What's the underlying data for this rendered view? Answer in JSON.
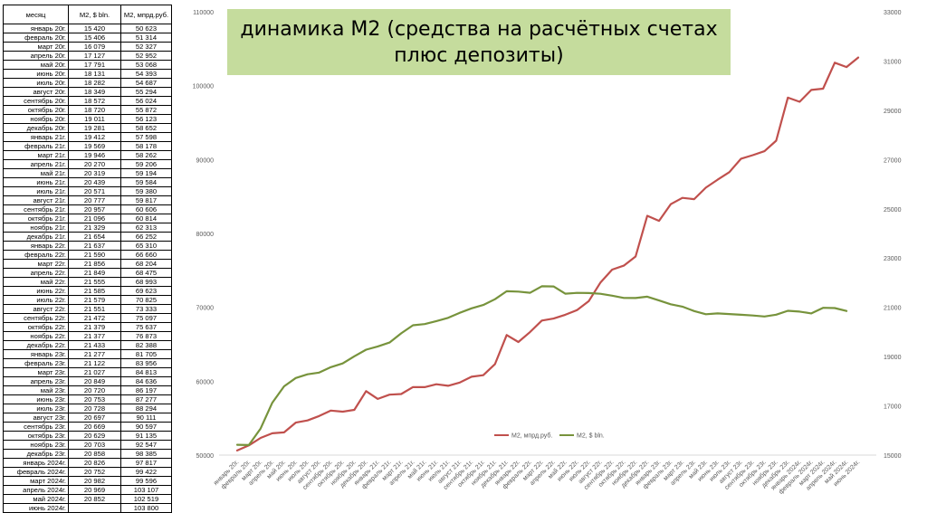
{
  "table": {
    "headers": [
      "месяц",
      "M2, $ bln.",
      "M2, мпрд.руб."
    ],
    "rows": [
      [
        "январь 20г.",
        "15 420",
        "50 623"
      ],
      [
        "февраль 20г.",
        "15 406",
        "51 314"
      ],
      [
        "март 20г.",
        "16 079",
        "52 327"
      ],
      [
        "апрель 20г.",
        "17 127",
        "52 952"
      ],
      [
        "май 20г.",
        "17 791",
        "53 068"
      ],
      [
        "июнь 20г.",
        "18 131",
        "54 393"
      ],
      [
        "июль 20г.",
        "18 282",
        "54 687"
      ],
      [
        "август 20г.",
        "18 349",
        "55 294"
      ],
      [
        "сентябрь 20г.",
        "18 572",
        "56 024"
      ],
      [
        "октябрь 20г.",
        "18 720",
        "55 872"
      ],
      [
        "ноябрь 20г.",
        "19 011",
        "56 123"
      ],
      [
        "декабрь 20г.",
        "19 281",
        "58 652"
      ],
      [
        "январь 21г.",
        "19 412",
        "57 598"
      ],
      [
        "февраль 21г.",
        "19 569",
        "58 178"
      ],
      [
        "март 21г.",
        "19 946",
        "58 262"
      ],
      [
        "апрель 21г.",
        "20 270",
        "59 206"
      ],
      [
        "май 21г.",
        "20 319",
        "59 194"
      ],
      [
        "июнь 21г.",
        "20 439",
        "59 584"
      ],
      [
        "июль 21г.",
        "20 571",
        "59 380"
      ],
      [
        "август 21г.",
        "20 777",
        "59 817"
      ],
      [
        "сентябрь 21г.",
        "20 957",
        "60 606"
      ],
      [
        "октябрь 21г.",
        "21 096",
        "60 814"
      ],
      [
        "ноябрь 21г.",
        "21 329",
        "62 313"
      ],
      [
        "декабрь 21г.",
        "21 654",
        "66 252"
      ],
      [
        "январь 22г.",
        "21 637",
        "65 310"
      ],
      [
        "февраль 22г.",
        "21 590",
        "66 660"
      ],
      [
        "март 22г.",
        "21 856",
        "68 204"
      ],
      [
        "апрель 22г.",
        "21 849",
        "68 475"
      ],
      [
        "май 22г.",
        "21 555",
        "68 993"
      ],
      [
        "июнь 22г.",
        "21 585",
        "69 623"
      ],
      [
        "июль 22г.",
        "21 579",
        "70 825"
      ],
      [
        "август 22г.",
        "21 551",
        "73 333"
      ],
      [
        "сентябрь 22г.",
        "21 472",
        "75 097"
      ],
      [
        "октябрь 22г.",
        "21 379",
        "75 637"
      ],
      [
        "ноябрь 22г.",
        "21 377",
        "76 873"
      ],
      [
        "декабрь 22г.",
        "21 433",
        "82 388"
      ],
      [
        "январь 23г.",
        "21 277",
        "81 705"
      ],
      [
        "февраль 23г.",
        "21 122",
        "83 956"
      ],
      [
        "март 23г.",
        "21 027",
        "84 813"
      ],
      [
        "апрель 23г.",
        "20 849",
        "84 636"
      ],
      [
        "май 23г.",
        "20 720",
        "86 197"
      ],
      [
        "июнь 23г.",
        "20 753",
        "87 277"
      ],
      [
        "июль 23г.",
        "20 728",
        "88 294"
      ],
      [
        "август 23г.",
        "20 697",
        "90 111"
      ],
      [
        "сентябрь 23г.",
        "20 669",
        "90 597"
      ],
      [
        "октябрь 23г.",
        "20 629",
        "91 135"
      ],
      [
        "ноябрь 23г.",
        "20 703",
        "92 547"
      ],
      [
        "декабрь 23г.",
        "20 858",
        "98 385"
      ],
      [
        "январь 2024г.",
        "20 826",
        "97 817"
      ],
      [
        "февраль 2024г.",
        "20 752",
        "99 422"
      ],
      [
        "март 2024г.",
        "20 982",
        "99 596"
      ],
      [
        "апрель 2024г.",
        "20 969",
        "103 107"
      ],
      [
        "май 2024г.",
        "20 852",
        "102 519"
      ],
      [
        "июнь 2024г.",
        "",
        "103 800"
      ]
    ]
  },
  "chart_data": {
    "type": "line",
    "title": "динамика М2 (средства на расчётных счетах плюс депозиты)",
    "categories": [
      "январь 20г.",
      "февраль 20г.",
      "март 20г.",
      "апрель 20г.",
      "май 20г.",
      "июнь 20г.",
      "июль 20г.",
      "август 20г.",
      "сентябрь 20г.",
      "октябрь 20г.",
      "ноябрь 20г.",
      "декабрь 20г.",
      "январь 21г.",
      "февраль 21г.",
      "март 21г.",
      "апрель 21г.",
      "май 21г.",
      "июнь 21г.",
      "июль 21г.",
      "август 21г.",
      "сентябрь 21г.",
      "октябрь 21г.",
      "ноябрь 21г.",
      "декабрь 21г.",
      "январь 22г.",
      "февраль 22г.",
      "март 22г.",
      "апрель 22г.",
      "май 22г.",
      "июнь 22г.",
      "июль 22г.",
      "август 22г.",
      "сентябрь 22г.",
      "октябрь 22г.",
      "ноябрь 22г.",
      "декабрь 22г.",
      "январь 23г.",
      "февраль 23г.",
      "март 23г.",
      "апрель 23г.",
      "май 23г.",
      "июнь 23г.",
      "июль 23г.",
      "август 23г.",
      "сентябрь 23г.",
      "октябрь 23г.",
      "ноябрь 23г.",
      "декабрь 23г.",
      "январь 2024г.",
      "февраль 2024г.",
      "март 2024г.",
      "апрель 2024г.",
      "май 2024г.",
      "июнь 2024г."
    ],
    "series": [
      {
        "name": "M2, мпрд.руб.",
        "axis": "left",
        "color": "#c0504d",
        "values": [
          50623,
          51314,
          52327,
          52952,
          53068,
          54393,
          54687,
          55294,
          56024,
          55872,
          56123,
          58652,
          57598,
          58178,
          58262,
          59206,
          59194,
          59584,
          59380,
          59817,
          60606,
          60814,
          62313,
          66252,
          65310,
          66660,
          68204,
          68475,
          68993,
          69623,
          70825,
          73333,
          75097,
          75637,
          76873,
          82388,
          81705,
          83956,
          84813,
          84636,
          86197,
          87277,
          88294,
          90111,
          90597,
          91135,
          92547,
          98385,
          97817,
          99422,
          99596,
          103107,
          102519,
          103800
        ]
      },
      {
        "name": "M2, $ bln.",
        "axis": "right",
        "color": "#77933c",
        "values": [
          15420,
          15406,
          16079,
          17127,
          17791,
          18131,
          18282,
          18349,
          18572,
          18720,
          19011,
          19281,
          19412,
          19569,
          19946,
          20270,
          20319,
          20439,
          20571,
          20777,
          20957,
          21096,
          21329,
          21654,
          21637,
          21590,
          21856,
          21849,
          21555,
          21585,
          21579,
          21551,
          21472,
          21379,
          21377,
          21433,
          21277,
          21122,
          21027,
          20849,
          20720,
          20753,
          20728,
          20697,
          20669,
          20629,
          20703,
          20858,
          20826,
          20752,
          20982,
          20969,
          20852,
          null
        ]
      }
    ],
    "left_axis": {
      "min": 50000,
      "max": 110000,
      "ticks": [
        "50000",
        "60000",
        "70000",
        "80000",
        "90000",
        "100000",
        "110000"
      ]
    },
    "right_axis": {
      "min": 15000,
      "max": 33000,
      "ticks": [
        "15000",
        "17000",
        "19000",
        "21000",
        "23000",
        "25000",
        "27000",
        "29000",
        "31000",
        "33000"
      ]
    },
    "grid": false,
    "legend_position": "bottom-center"
  }
}
